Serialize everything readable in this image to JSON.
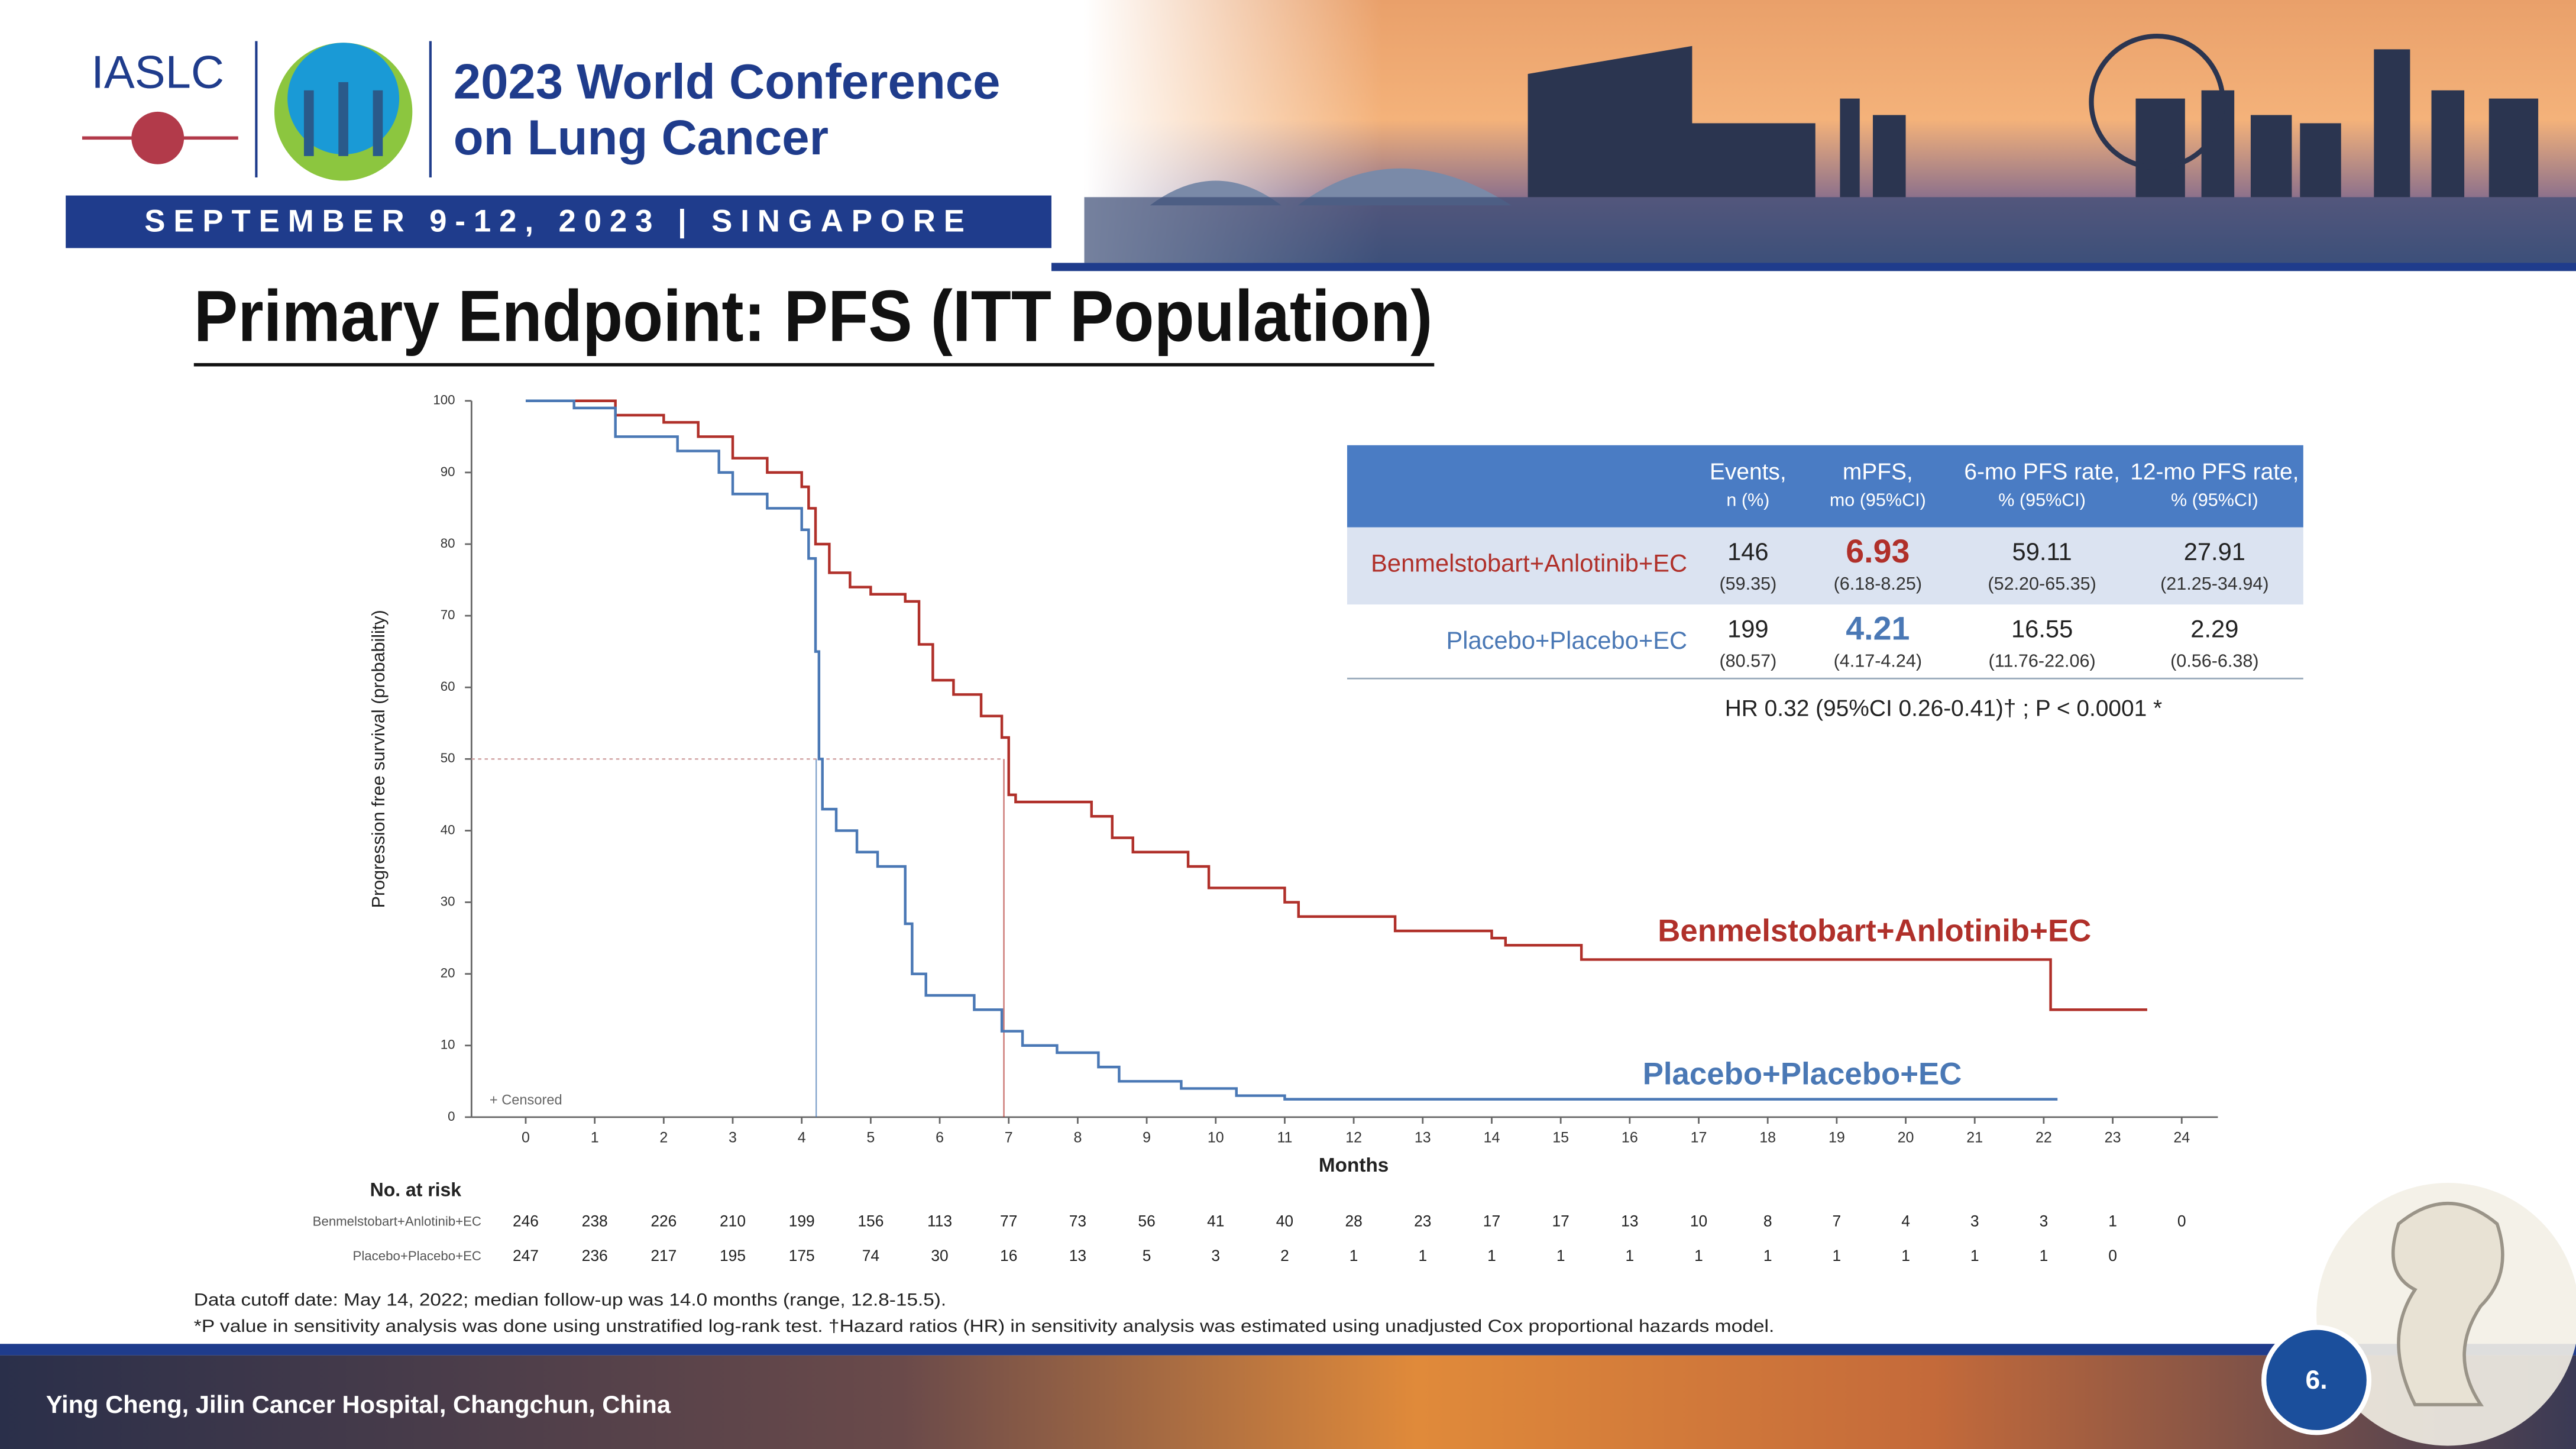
{
  "header": {
    "org": "IASLC",
    "conference": [
      "2023 World Conference",
      "on Lung Cancer"
    ],
    "dates": "SEPTEMBER 9-12, 2023 | SINGAPORE"
  },
  "title": "Primary Endpoint: PFS (ITT Population)",
  "chart_data": {
    "type": "line",
    "x_label": "Months",
    "y_label": "Progression free survival (probability)",
    "censored_label": "+ Censored",
    "xlim": [
      0,
      24
    ],
    "ylim": [
      0,
      100
    ],
    "xticks": [
      0,
      1,
      2,
      3,
      4,
      5,
      6,
      7,
      8,
      9,
      10,
      11,
      12,
      13,
      14,
      15,
      16,
      17,
      18,
      19,
      20,
      21,
      22,
      23,
      24
    ],
    "yticks": [
      0,
      10,
      20,
      30,
      40,
      50,
      60,
      70,
      80,
      90,
      100
    ],
    "series": [
      {
        "name": "Benmelstobart+Anlotinib+EC",
        "color": "#b0302a",
        "x": [
          0,
          1.3,
          2,
          2.5,
          3,
          3.5,
          4,
          4.1,
          4.2,
          4.4,
          4.7,
          5,
          5.5,
          5.7,
          5.9,
          6.2,
          6.6,
          6.9,
          7.0,
          7.1,
          8.2,
          8.5,
          8.8,
          9.6,
          9.9,
          11.0,
          11.2,
          12.6,
          14,
          14.2,
          15.3,
          22.1,
          23.5
        ],
        "values": [
          100,
          98,
          97,
          95,
          92,
          90,
          88,
          85,
          80,
          76,
          74,
          73,
          72,
          66,
          61,
          59,
          56,
          53,
          45,
          44,
          42,
          39,
          37,
          35,
          32,
          30,
          28,
          26,
          25,
          24,
          22,
          15,
          15
        ]
      },
      {
        "name": "Placebo+Placebo+EC",
        "color": "#4a78b5",
        "x": [
          0,
          0.7,
          1.3,
          2.2,
          2.8,
          3,
          3.5,
          4,
          4.1,
          4.2,
          4.25,
          4.3,
          4.5,
          4.8,
          5.1,
          5.5,
          5.6,
          5.8,
          6.5,
          6.9,
          7.2,
          7.7,
          8.3,
          8.6,
          9.5,
          10.3,
          11,
          22.2
        ],
        "values": [
          100,
          99,
          95,
          93,
          90,
          87,
          85,
          82,
          78,
          65,
          50,
          43,
          40,
          37,
          35,
          27,
          20,
          17,
          15,
          12,
          10,
          9,
          7,
          5,
          4,
          3,
          2.5,
          2.5
        ]
      }
    ]
  },
  "risk_table": {
    "title": "No. at risk",
    "rows": [
      [
        246,
        238,
        226,
        210,
        199,
        156,
        113,
        77,
        73,
        56,
        41,
        40,
        28,
        23,
        17,
        17,
        13,
        10,
        8,
        7,
        4,
        3,
        3,
        1,
        0
      ],
      [
        247,
        236,
        217,
        195,
        175,
        74,
        30,
        16,
        13,
        5,
        3,
        2,
        1,
        1,
        1,
        1,
        1,
        1,
        1,
        1,
        1,
        1,
        1,
        0
      ]
    ]
  },
  "summary_table": {
    "columns": [
      [
        "Events,",
        "n (%)"
      ],
      [
        "mPFS,",
        "mo (95%CI)"
      ],
      [
        "6-mo PFS rate,",
        "% (95%CI)"
      ],
      [
        "12-mo PFS rate,",
        "% (95%CI)"
      ]
    ],
    "rows": [
      {
        "name": "Benmelstobart+Anlotinib+EC",
        "cells": [
          [
            146,
            "(59.35)"
          ],
          [
            6.93,
            "(6.18-8.25)"
          ],
          [
            59.11,
            "(52.20-65.35)"
          ],
          [
            27.91,
            "(21.25-34.94)"
          ]
        ]
      },
      {
        "name": "Placebo+Placebo+EC",
        "cells": [
          [
            199,
            "(80.57)"
          ],
          [
            4.21,
            "(4.17-4.24)"
          ],
          [
            16.55,
            "(11.76-22.06)"
          ],
          [
            2.29,
            "(0.56-6.38)"
          ]
        ]
      }
    ],
    "note": "HR 0.32 (95%CI 0.26-0.41)† ; P < 0.0001 *"
  },
  "footnotes": [
    "Data cutoff date: May 14, 2022; median follow-up was 14.0 months (range, 12.8-15.5).",
    "*P value in sensitivity analysis was done using unstratified log-rank test.   †Hazard ratios (HR) in sensitivity analysis was estimated using unadjusted Cox proportional hazards model."
  ],
  "footer": {
    "presenter": "Ying Cheng, Jilin Cancer Hospital, Changchun, China",
    "page": "6."
  }
}
